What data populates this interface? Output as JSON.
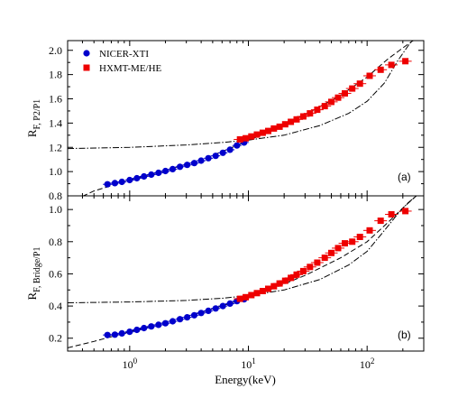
{
  "chart_data": {
    "type": "scatter",
    "xlabel": "Energy(keV)",
    "xscale": "log",
    "xlim": [
      0.3,
      300
    ],
    "x_tick_labels": [
      "10^0",
      "10^1",
      "10^2"
    ],
    "legend": {
      "placement": "top-left",
      "entries": [
        "NICER-XTI",
        "HXMT-ME/HE"
      ]
    },
    "colors": {
      "nicer": "#0000cc",
      "hxmt": "#ee0000",
      "model": "#000000"
    },
    "panels": [
      {
        "tag": "(a)",
        "ylabel_main": "R",
        "ylabel_sub": "F, P2/P1",
        "ylim": [
          0.8,
          2.08
        ],
        "yticks": [
          "0.8",
          "1.0",
          "1.2",
          "1.4",
          "1.6",
          "1.8",
          "2.0"
        ],
        "series": [
          {
            "name": "NICER-XTI",
            "x": [
              0.65,
              0.75,
              0.86,
              1.0,
              1.15,
              1.32,
              1.52,
              1.75,
              2.0,
              2.3,
              2.65,
              3.05,
              3.5,
              4.0,
              4.6,
              5.3,
              6.1,
              7.0,
              8.0,
              9.2
            ],
            "y": [
              0.895,
              0.905,
              0.915,
              0.93,
              0.945,
              0.96,
              0.975,
              0.99,
              1.005,
              1.02,
              1.04,
              1.055,
              1.07,
              1.09,
              1.11,
              1.13,
              1.155,
              1.18,
              1.215,
              1.24
            ]
          },
          {
            "name": "HXMT-ME/HE",
            "x": [
              8.5,
              9.5,
              10.6,
              11.8,
              13.2,
              14.7,
              16.4,
              18.3,
              20.4,
              22.8,
              25.5,
              29,
              33,
              38,
              44,
              50,
              57,
              65,
              75,
              87,
              105,
              130,
              160,
              210
            ],
            "y": [
              1.265,
              1.275,
              1.29,
              1.305,
              1.32,
              1.335,
              1.355,
              1.37,
              1.39,
              1.41,
              1.43,
              1.455,
              1.48,
              1.51,
              1.54,
              1.575,
              1.61,
              1.645,
              1.685,
              1.725,
              1.79,
              1.84,
              1.88,
              1.91
            ]
          }
        ],
        "model_dashed": {
          "x": [
            0.3,
            0.5,
            1,
            2,
            4,
            8,
            15,
            30,
            60,
            100,
            150,
            200,
            260
          ],
          "y": [
            0.74,
            0.84,
            0.93,
            1.01,
            1.095,
            1.215,
            1.33,
            1.47,
            1.63,
            1.78,
            1.93,
            2.02,
            2.1
          ]
        },
        "model_dashdot": {
          "x": [
            0.3,
            1,
            3,
            6,
            10,
            20,
            40,
            70,
            100,
            140,
            180,
            230,
            260
          ],
          "y": [
            1.19,
            1.2,
            1.22,
            1.24,
            1.26,
            1.3,
            1.38,
            1.48,
            1.58,
            1.73,
            1.91,
            2.06,
            2.1
          ]
        }
      },
      {
        "tag": "(b)",
        "ylabel_main": "R",
        "ylabel_sub": "F, Bridge/P1",
        "ylim": [
          0.12,
          1.085
        ],
        "yticks": [
          "0.2",
          "0.4",
          "0.6",
          "0.8",
          "1.0"
        ],
        "series": [
          {
            "name": "NICER-XTI",
            "x": [
              0.65,
              0.75,
              0.86,
              1.0,
              1.15,
              1.32,
              1.52,
              1.75,
              2.0,
              2.3,
              2.65,
              3.05,
              3.5,
              4.0,
              4.6,
              5.3,
              6.1,
              7.0,
              8.0,
              9.2
            ],
            "y": [
              0.22,
              0.222,
              0.23,
              0.24,
              0.252,
              0.263,
              0.273,
              0.283,
              0.293,
              0.305,
              0.318,
              0.33,
              0.343,
              0.357,
              0.37,
              0.385,
              0.4,
              0.415,
              0.43,
              0.442
            ]
          },
          {
            "name": "HXMT-ME/HE",
            "x": [
              8.5,
              9.5,
              10.6,
              11.8,
              13.2,
              14.7,
              16.4,
              18.3,
              20.4,
              22.8,
              25.5,
              29,
              33,
              38,
              44,
              50,
              57,
              65,
              75,
              87,
              105,
              130,
              160,
              210
            ],
            "y": [
              0.445,
              0.455,
              0.468,
              0.48,
              0.493,
              0.507,
              0.523,
              0.54,
              0.557,
              0.575,
              0.595,
              0.617,
              0.643,
              0.67,
              0.7,
              0.73,
              0.76,
              0.79,
              0.8,
              0.83,
              0.87,
              0.93,
              0.97,
              0.99
            ]
          }
        ],
        "model_dashed": {
          "x": [
            0.3,
            0.5,
            1,
            2,
            4,
            8,
            15,
            30,
            60,
            100,
            150,
            200,
            260
          ],
          "y": [
            0.14,
            0.18,
            0.24,
            0.3,
            0.36,
            0.43,
            0.5,
            0.59,
            0.7,
            0.8,
            0.92,
            1.01,
            1.085
          ]
        },
        "model_dashdot": {
          "x": [
            0.3,
            1,
            3,
            6,
            10,
            20,
            40,
            70,
            100,
            140,
            180,
            220,
            260
          ],
          "y": [
            0.42,
            0.425,
            0.435,
            0.448,
            0.465,
            0.5,
            0.565,
            0.655,
            0.74,
            0.87,
            0.97,
            1.04,
            1.085
          ]
        }
      }
    ]
  }
}
